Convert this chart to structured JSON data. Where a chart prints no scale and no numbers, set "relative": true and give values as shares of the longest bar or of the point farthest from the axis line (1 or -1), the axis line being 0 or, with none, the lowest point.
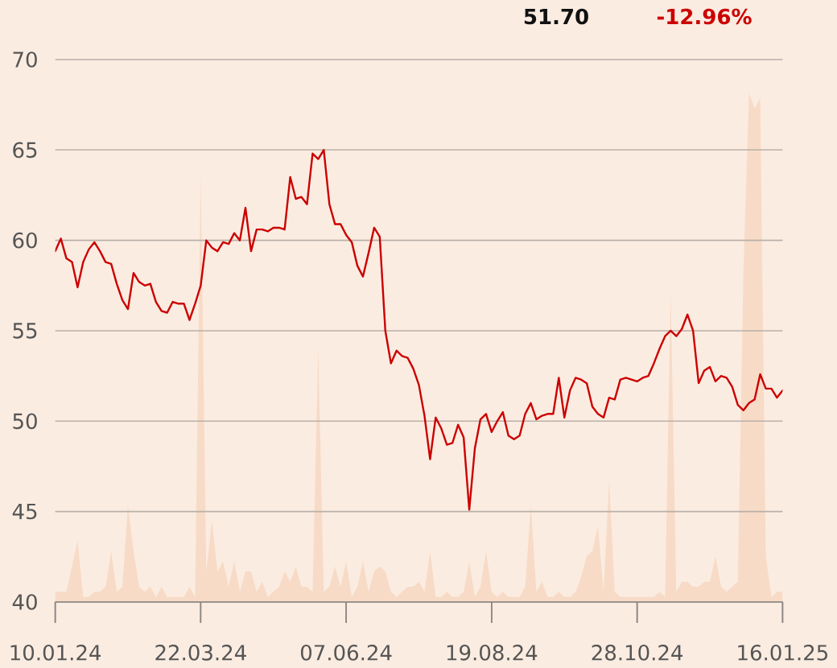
{
  "chart_data": [
    {
      "type": "line",
      "annotations": [
        "51.70",
        "-12.96%"
      ],
      "categories": [
        "10.01.24",
        null,
        null,
        null,
        null,
        null,
        null,
        null,
        null,
        null,
        null,
        null,
        null,
        null,
        null,
        null,
        null,
        null,
        null,
        null,
        null,
        null,
        null,
        null,
        null,
        null,
        "22.03.24",
        null,
        null,
        null,
        null,
        null,
        null,
        null,
        null,
        null,
        null,
        null,
        null,
        null,
        null,
        null,
        null,
        null,
        null,
        null,
        null,
        null,
        null,
        null,
        null,
        null,
        "07.06.24",
        null,
        null,
        null,
        null,
        null,
        null,
        null,
        null,
        null,
        null,
        null,
        null,
        null,
        null,
        null,
        null,
        null,
        null,
        null,
        null,
        null,
        null,
        null,
        null,
        null,
        "19.08.24",
        null,
        null,
        null,
        null,
        null,
        null,
        null,
        null,
        null,
        null,
        null,
        null,
        null,
        null,
        null,
        null,
        null,
        null,
        null,
        null,
        null,
        null,
        null,
        null,
        null,
        "28.10.24",
        null,
        null,
        null,
        null,
        null,
        null,
        null,
        null,
        null,
        null,
        null,
        null,
        null,
        null,
        null,
        null,
        null,
        null,
        null,
        null,
        null,
        null,
        null,
        null,
        null,
        "16.01.25"
      ],
      "values": [
        59.4,
        60.1,
        59.0,
        58.8,
        57.4,
        58.8,
        59.5,
        59.9,
        59.4,
        58.8,
        58.7,
        57.6,
        56.7,
        56.2,
        58.2,
        57.7,
        57.5,
        57.6,
        56.6,
        56.1,
        56.0,
        56.6,
        56.5,
        56.5,
        55.6,
        56.5,
        57.5,
        60.0,
        59.6,
        59.4,
        59.9,
        59.8,
        60.4,
        60.0,
        61.8,
        59.4,
        60.6,
        60.6,
        60.5,
        60.7,
        60.7,
        60.6,
        63.5,
        62.3,
        62.4,
        62.0,
        64.8,
        64.5,
        65.0,
        62.0,
        60.9,
        60.9,
        60.3,
        59.9,
        58.6,
        58.0,
        59.3,
        60.7,
        60.2,
        55.0,
        53.2,
        53.9,
        53.6,
        53.5,
        52.9,
        52.0,
        50.3,
        47.9,
        50.2,
        49.6,
        48.7,
        48.8,
        49.8,
        49.1,
        45.1,
        48.5,
        50.1,
        50.4,
        49.4,
        50.0,
        50.5,
        49.2,
        49.0,
        49.2,
        50.4,
        51.0,
        50.1,
        50.3,
        50.4,
        50.4,
        52.4,
        50.2,
        51.7,
        52.4,
        52.3,
        52.1,
        50.8,
        50.4,
        50.2,
        51.3,
        51.2,
        52.3,
        52.4,
        52.3,
        52.2,
        52.4,
        52.5,
        53.2,
        54.0,
        54.7,
        55.0,
        54.7,
        55.1,
        55.9,
        55.0,
        52.1,
        52.8,
        53.0,
        52.2,
        52.5,
        52.4,
        51.9,
        50.9,
        50.6,
        51.0,
        51.2,
        52.6,
        51.8,
        51.8,
        51.3,
        51.7
      ],
      "color": "#cc0000",
      "line_style": "solid",
      "ylim": [
        40,
        70
      ],
      "yticks": [
        40,
        45,
        50,
        55,
        60,
        65,
        70
      ],
      "grid": "y"
    },
    {
      "type": "area",
      "relative": true,
      "tick_labels": false,
      "categories": [
        "10.01.24",
        null,
        null,
        null,
        null,
        null,
        null,
        null,
        null,
        null,
        null,
        null,
        null,
        null,
        null,
        null,
        null,
        null,
        null,
        null,
        null,
        null,
        null,
        null,
        null,
        null,
        "22.03.24",
        null,
        null,
        null,
        null,
        null,
        null,
        null,
        null,
        null,
        null,
        null,
        null,
        null,
        null,
        null,
        null,
        null,
        null,
        null,
        null,
        null,
        null,
        null,
        null,
        null,
        "07.06.24",
        null,
        null,
        null,
        null,
        null,
        null,
        null,
        null,
        null,
        null,
        null,
        null,
        null,
        null,
        null,
        null,
        null,
        null,
        null,
        null,
        null,
        null,
        null,
        null,
        null,
        "19.08.24",
        null,
        null,
        null,
        null,
        null,
        null,
        null,
        null,
        null,
        null,
        null,
        null,
        null,
        null,
        null,
        null,
        null,
        null,
        null,
        null,
        null,
        null,
        null,
        null,
        null,
        "28.10.24",
        null,
        null,
        null,
        null,
        null,
        null,
        null,
        null,
        null,
        null,
        null,
        null,
        null,
        null,
        null,
        null,
        null,
        null,
        null,
        null,
        null,
        null,
        null,
        null,
        null,
        "16.01.25"
      ],
      "values": [
        0.02,
        0.02,
        0.02,
        0.07,
        0.12,
        0.01,
        0.01,
        0.02,
        0.02,
        0.03,
        0.1,
        0.02,
        0.03,
        0.19,
        0.1,
        0.03,
        0.02,
        0.03,
        0.01,
        0.03,
        0.01,
        0.01,
        0.01,
        0.01,
        0.03,
        0.01,
        0.84,
        0.06,
        0.16,
        0.06,
        0.08,
        0.03,
        0.08,
        0.02,
        0.06,
        0.06,
        0.02,
        0.04,
        0.01,
        0.02,
        0.03,
        0.06,
        0.04,
        0.07,
        0.03,
        0.03,
        0.02,
        0.5,
        0.02,
        0.03,
        0.07,
        0.03,
        0.08,
        0.01,
        0.03,
        0.08,
        0.02,
        0.06,
        0.07,
        0.06,
        0.02,
        0.01,
        0.02,
        0.03,
        0.03,
        0.04,
        0.02,
        0.1,
        0.01,
        0.01,
        0.02,
        0.01,
        0.01,
        0.02,
        0.08,
        0.01,
        0.03,
        0.1,
        0.02,
        0.01,
        0.02,
        0.01,
        0.01,
        0.01,
        0.03,
        0.19,
        0.02,
        0.04,
        0.01,
        0.01,
        0.02,
        0.01,
        0.01,
        0.02,
        0.05,
        0.09,
        0.1,
        0.15,
        0.02,
        0.24,
        0.02,
        0.01,
        0.01,
        0.01,
        0.01,
        0.01,
        0.01,
        0.01,
        0.02,
        0.01,
        0.61,
        0.02,
        0.04,
        0.04,
        0.03,
        0.03,
        0.04,
        0.04,
        0.09,
        0.03,
        0.02,
        0.03,
        0.04,
        0.65,
        1,
        0.97,
        0.99,
        0.09,
        0.01,
        0.02,
        0.02
      ],
      "color": "#f7dbc6"
    }
  ]
}
